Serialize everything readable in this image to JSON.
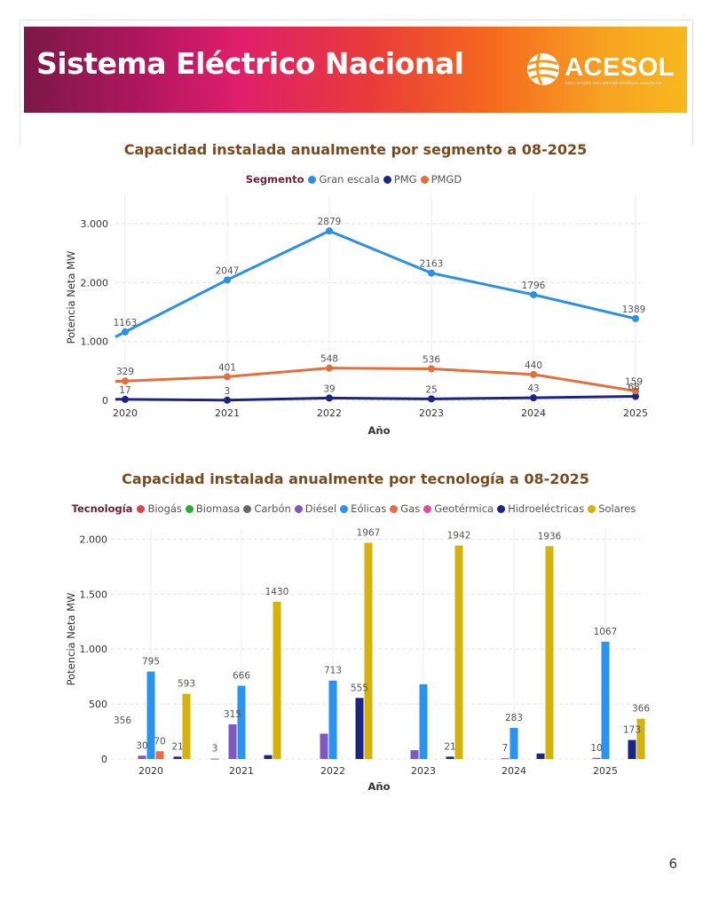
{
  "header": {
    "title": "Sistema Eléctrico Nacional",
    "logo_text": "ACESOL",
    "logo_subtitle": "ASOCIACIÓN CHILENA DE ENERGÍA SOLAR AG"
  },
  "page_number": "6",
  "chart_data": [
    {
      "type": "line",
      "title": "Capacidad instalada anualmente por segmento a 08-2025",
      "legend_title": "Segmento",
      "xlabel": "Año",
      "ylabel": "Potencia Neta MW",
      "categories": [
        "2020",
        "2021",
        "2022",
        "2023",
        "2024",
        "2025"
      ],
      "ylim": [
        0,
        3500
      ],
      "yticks": [
        0,
        1000,
        2000,
        3000
      ],
      "ytick_labels": [
        "0",
        "1.000",
        "2.000",
        "3.000"
      ],
      "grid": true,
      "series": [
        {
          "name": "Gran escala",
          "color": "#2b8fe6",
          "values": [
            1163,
            2047,
            2879,
            2163,
            1796,
            1389
          ]
        },
        {
          "name": "PMG",
          "color": "#1b2583",
          "values": [
            17,
            3,
            39,
            25,
            43,
            68
          ]
        },
        {
          "name": "PMGD",
          "color": "#e2703f",
          "values": [
            329,
            401,
            548,
            536,
            440,
            159
          ]
        }
      ]
    },
    {
      "type": "bar",
      "title": "Capacidad instalada anualmente por tecnología a 08-2025",
      "legend_title": "Tecnología",
      "xlabel": "Año",
      "ylabel": "Potencia Neta MW",
      "categories": [
        "2020",
        "2021",
        "2022",
        "2023",
        "2024",
        "2025"
      ],
      "ylim": [
        0,
        2100
      ],
      "yticks": [
        0,
        500,
        1000,
        1500,
        2000
      ],
      "ytick_labels": [
        "0",
        "500",
        "1.000",
        "1.500",
        "2.000"
      ],
      "grid": true,
      "series": [
        {
          "name": "Biogás",
          "color": "#d4474f",
          "values": [
            0,
            0,
            0,
            0,
            0,
            0
          ],
          "labels": [
            "",
            "",
            "",
            "",
            "",
            ""
          ]
        },
        {
          "name": "Biomasa",
          "color": "#2bb02b",
          "values": [
            0,
            3,
            0,
            0,
            0,
            0
          ],
          "labels": [
            "",
            "3",
            "",
            "",
            "",
            ""
          ]
        },
        {
          "name": "Carbón",
          "color": "#666666",
          "values": [
            0,
            0,
            0,
            0,
            0,
            0
          ],
          "labels": [
            "",
            "",
            "",
            "",
            "",
            ""
          ]
        },
        {
          "name": "Diésel",
          "color": "#7e57c2",
          "values": [
            30,
            315,
            230,
            80,
            7,
            10
          ],
          "labels": [
            "30",
            "315",
            "",
            "",
            "7",
            "10"
          ]
        },
        {
          "name": "Eólicas",
          "color": "#2893f0",
          "values": [
            795,
            666,
            713,
            680,
            283,
            1067
          ],
          "labels": [
            "795",
            "666",
            "713",
            "",
            "283",
            "1067"
          ]
        },
        {
          "name": "Gas",
          "color": "#eb6a43",
          "values": [
            70,
            0,
            0,
            0,
            0,
            0
          ],
          "labels": [
            "70",
            "",
            "",
            "",
            "",
            ""
          ]
        },
        {
          "name": "Geotérmica",
          "color": "#e34aa8",
          "values": [
            0,
            0,
            0,
            0,
            0,
            0
          ],
          "labels": [
            "",
            "",
            "",
            "",
            "",
            ""
          ]
        },
        {
          "name": "Hidroeléctricas",
          "color": "#1b2583",
          "values": [
            21,
            35,
            555,
            21,
            50,
            173
          ],
          "labels": [
            "21",
            "",
            "555",
            "21",
            "",
            "173"
          ]
        },
        {
          "name": "Solares",
          "color": "#d4b20a",
          "values": [
            593,
            1430,
            1967,
            1942,
            1936,
            366
          ],
          "labels": [
            "593",
            "1430",
            "1967",
            "1942",
            "1936",
            "366"
          ]
        }
      ],
      "annotations": [
        {
          "text": "356",
          "category": "2020"
        }
      ]
    }
  ]
}
